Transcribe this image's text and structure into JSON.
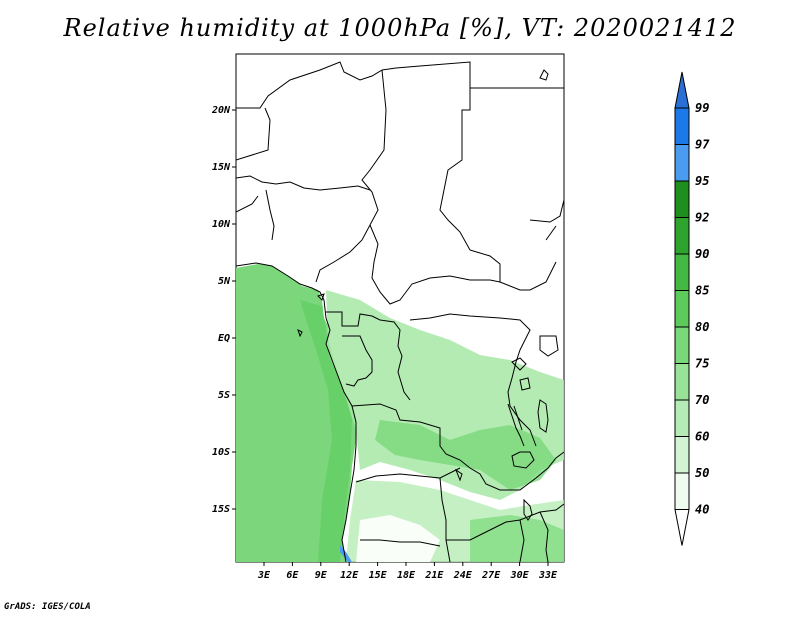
{
  "title": "Relative humidity at 1000hPa [%], VT: 2020021412",
  "credit": "GrADS: IGES/COLA",
  "colors": {
    "land": "#ffffff",
    "boundary": "#000000",
    "sea": "#7cd77c"
  },
  "map": {
    "lat_labels": [
      "20N",
      "15N",
      "10N",
      "5N",
      "EQ",
      "5S",
      "10S",
      "15S"
    ],
    "lon_labels": [
      "3E",
      "6E",
      "9E",
      "12E",
      "15E",
      "18E",
      "21E",
      "24E",
      "27E",
      "30E",
      "33E"
    ]
  },
  "colorbar": {
    "levels": [
      "99",
      "97",
      "95",
      "92",
      "90",
      "85",
      "80",
      "75",
      "70",
      "60",
      "50",
      "40"
    ],
    "colors": [
      "#2a6fd6",
      "#1c7ae8",
      "#4a9cf0",
      "#1e8f1e",
      "#2ea32e",
      "#43b943",
      "#5ccb5c",
      "#79d879",
      "#98e398",
      "#b5ecb5",
      "#d3f4d3",
      "#eefbee",
      "#ffffff"
    ]
  }
}
